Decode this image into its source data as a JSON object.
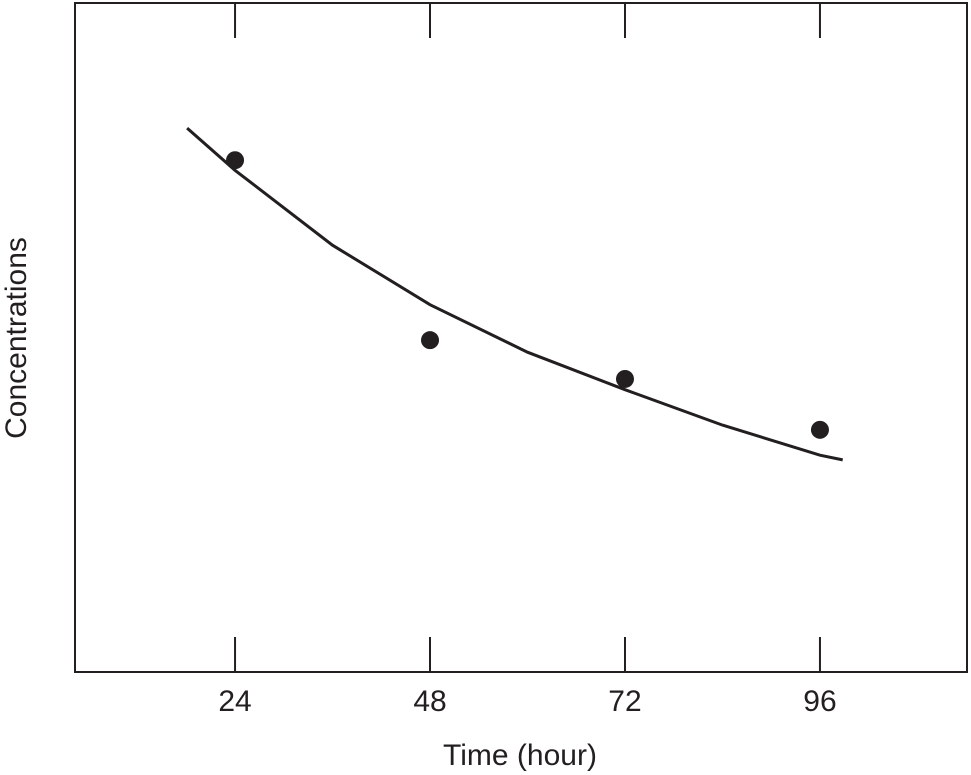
{
  "chart_data": {
    "type": "scatter",
    "x_label": "Time (hour)",
    "y_label": "Concentrations",
    "x": [
      24,
      48,
      72,
      96
    ],
    "values": [
      76.5,
      49.6,
      43.8,
      36.2
    ],
    "color": "#231f20",
    "curve": {
      "x": [
        18.1,
        24,
        36,
        48,
        60,
        72,
        84,
        96,
        98.8
      ],
      "values": [
        81.3,
        75.0,
        63.8,
        54.9,
        47.8,
        42.2,
        36.9,
        32.4,
        31.7
      ]
    },
    "xlim": [
      4.3,
      114.1
    ],
    "xticks": [
      24,
      48,
      72,
      96
    ],
    "ylim": [
      0,
      100
    ]
  }
}
